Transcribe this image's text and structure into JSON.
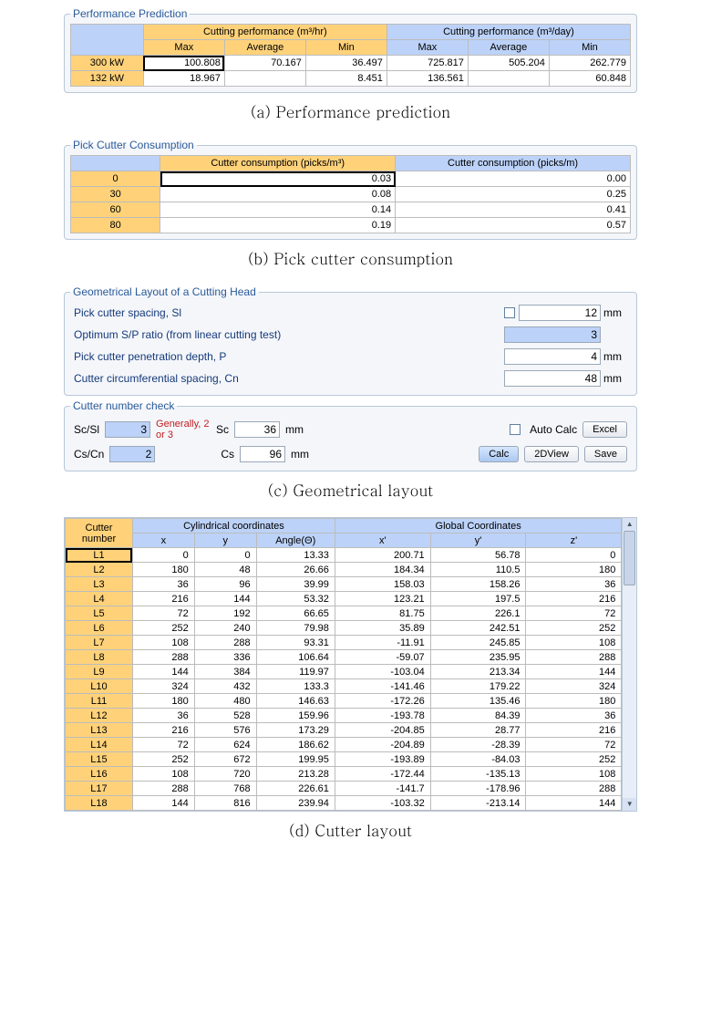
{
  "perf": {
    "legend": "Performance Prediction",
    "hr_group": "Cutting performance (m³/hr)",
    "day_group": "Cutting performance (m³/day)",
    "cols": {
      "max": "Max",
      "avg": "Average",
      "min": "Min"
    },
    "rows": [
      {
        "label": "300 kW",
        "hr_max": "100.808",
        "hr_avg": "70.167",
        "hr_min": "36.497",
        "d_max": "725.817",
        "d_avg": "505.204",
        "d_min": "262.779",
        "sel": true
      },
      {
        "label": "132 kW",
        "hr_max": "18.967",
        "hr_avg": "",
        "hr_min": "8.451",
        "d_max": "136.561",
        "d_avg": "",
        "d_min": "60.848",
        "sel": false
      }
    ],
    "caption": "(a) Performance prediction"
  },
  "consumption": {
    "legend": "Pick Cutter Consumption",
    "col_m3": "Cutter consumption (picks/m³)",
    "col_m": "Cutter consumption (picks/m)",
    "rows": [
      {
        "label": "0",
        "m3": "0.03",
        "m": "0.00",
        "sel": true
      },
      {
        "label": "30",
        "m3": "0.08",
        "m": "0.25",
        "sel": false
      },
      {
        "label": "60",
        "m3": "0.14",
        "m": "0.41",
        "sel": false
      },
      {
        "label": "80",
        "m3": "0.19",
        "m": "0.57",
        "sel": false
      }
    ],
    "caption": "(b) Pick cutter consumption"
  },
  "geom": {
    "legend": "Geometrical Layout of a Cutting Head",
    "p1_lbl": "Pick cutter spacing, Sl",
    "p1_val": "12",
    "p1_unit": "mm",
    "p2_lbl": "Optimum S/P ratio (from linear cutting test)",
    "p2_val": "3",
    "p3_lbl": "Pick cutter penetration depth, P",
    "p3_val": "4",
    "p3_unit": "mm",
    "p4_lbl": "Cutter circumferential spacing, Cn",
    "p4_val": "48",
    "p4_unit": "mm",
    "check_legend": "Cutter number check",
    "scsl_lbl": "Sc/Sl",
    "scsl_val": "3",
    "hint": "Generally, 2 or 3",
    "sc_lbl": "Sc",
    "sc_val": "36",
    "sc_unit": "mm",
    "cscn_lbl": "Cs/Cn",
    "cscn_val": "2",
    "cs_lbl": "Cs",
    "cs_val": "96",
    "cs_unit": "mm",
    "auto_calc": "Auto Calc",
    "btn_excel": "Excel",
    "btn_calc": "Calc",
    "btn_2d": "2DView",
    "btn_save": "Save",
    "caption": "(c) Geometrical layout"
  },
  "layout": {
    "h_cutter": "Cutter number",
    "h_cyl": "Cylindrical coordinates",
    "h_glob": "Global Coordinates",
    "cols": {
      "x": "x",
      "y": "y",
      "ang": "Angle(Θ)",
      "xp": "x'",
      "yp": "y'",
      "zp": "z'"
    },
    "rows": [
      {
        "n": "L1",
        "x": "0",
        "y": "0",
        "ang": "13.33",
        "xp": "200.71",
        "yp": "56.78",
        "zp": "0",
        "sel": true
      },
      {
        "n": "L2",
        "x": "180",
        "y": "48",
        "ang": "26.66",
        "xp": "184.34",
        "yp": "110.5",
        "zp": "180"
      },
      {
        "n": "L3",
        "x": "36",
        "y": "96",
        "ang": "39.99",
        "xp": "158.03",
        "yp": "158.26",
        "zp": "36"
      },
      {
        "n": "L4",
        "x": "216",
        "y": "144",
        "ang": "53.32",
        "xp": "123.21",
        "yp": "197.5",
        "zp": "216"
      },
      {
        "n": "L5",
        "x": "72",
        "y": "192",
        "ang": "66.65",
        "xp": "81.75",
        "yp": "226.1",
        "zp": "72"
      },
      {
        "n": "L6",
        "x": "252",
        "y": "240",
        "ang": "79.98",
        "xp": "35.89",
        "yp": "242.51",
        "zp": "252"
      },
      {
        "n": "L7",
        "x": "108",
        "y": "288",
        "ang": "93.31",
        "xp": "-11.91",
        "yp": "245.85",
        "zp": "108"
      },
      {
        "n": "L8",
        "x": "288",
        "y": "336",
        "ang": "106.64",
        "xp": "-59.07",
        "yp": "235.95",
        "zp": "288"
      },
      {
        "n": "L9",
        "x": "144",
        "y": "384",
        "ang": "119.97",
        "xp": "-103.04",
        "yp": "213.34",
        "zp": "144"
      },
      {
        "n": "L10",
        "x": "324",
        "y": "432",
        "ang": "133.3",
        "xp": "-141.46",
        "yp": "179.22",
        "zp": "324"
      },
      {
        "n": "L11",
        "x": "180",
        "y": "480",
        "ang": "146.63",
        "xp": "-172.26",
        "yp": "135.46",
        "zp": "180"
      },
      {
        "n": "L12",
        "x": "36",
        "y": "528",
        "ang": "159.96",
        "xp": "-193.78",
        "yp": "84.39",
        "zp": "36"
      },
      {
        "n": "L13",
        "x": "216",
        "y": "576",
        "ang": "173.29",
        "xp": "-204.85",
        "yp": "28.77",
        "zp": "216"
      },
      {
        "n": "L14",
        "x": "72",
        "y": "624",
        "ang": "186.62",
        "xp": "-204.89",
        "yp": "-28.39",
        "zp": "72"
      },
      {
        "n": "L15",
        "x": "252",
        "y": "672",
        "ang": "199.95",
        "xp": "-193.89",
        "yp": "-84.03",
        "zp": "252"
      },
      {
        "n": "L16",
        "x": "108",
        "y": "720",
        "ang": "213.28",
        "xp": "-172.44",
        "yp": "-135.13",
        "zp": "108"
      },
      {
        "n": "L17",
        "x": "288",
        "y": "768",
        "ang": "226.61",
        "xp": "-141.7",
        "yp": "-178.96",
        "zp": "288"
      },
      {
        "n": "L18",
        "x": "144",
        "y": "816",
        "ang": "239.94",
        "xp": "-103.32",
        "yp": "-213.14",
        "zp": "144"
      }
    ],
    "caption": "(d) Cutter layout"
  }
}
